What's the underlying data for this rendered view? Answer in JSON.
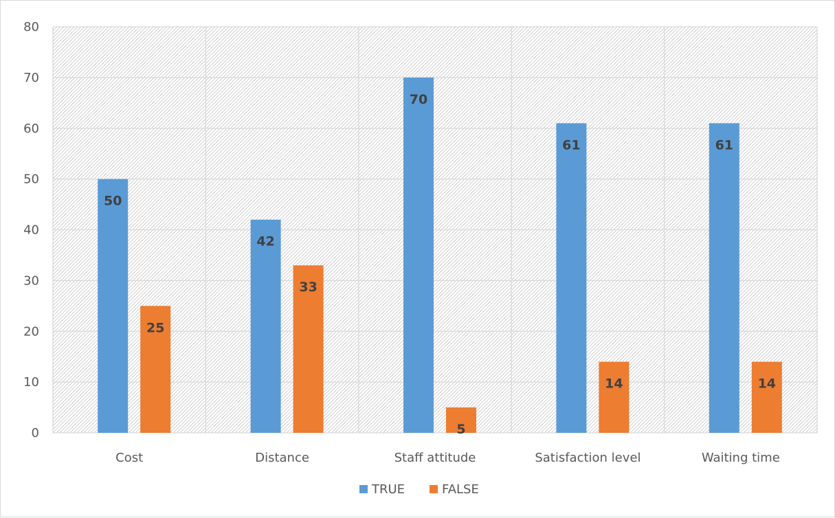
{
  "chart_data": {
    "type": "bar",
    "categories": [
      "Cost",
      "Distance",
      "Staff attitude",
      "Satisfaction level",
      "Waiting time"
    ],
    "series": [
      {
        "name": "TRUE",
        "values": [
          50,
          42,
          70,
          61,
          61
        ],
        "color": "#5b9bd5"
      },
      {
        "name": "FALSE",
        "values": [
          25,
          33,
          5,
          14,
          14
        ],
        "color": "#ed7d31"
      }
    ],
    "ylim": [
      0,
      80
    ],
    "yticks": [
      0,
      10,
      20,
      30,
      40,
      50,
      60,
      70,
      80
    ],
    "grid": true,
    "plot_fill": "hatched",
    "data_labels": true,
    "legend_position": "bottom",
    "title": "",
    "xlabel": "",
    "ylabel": ""
  }
}
